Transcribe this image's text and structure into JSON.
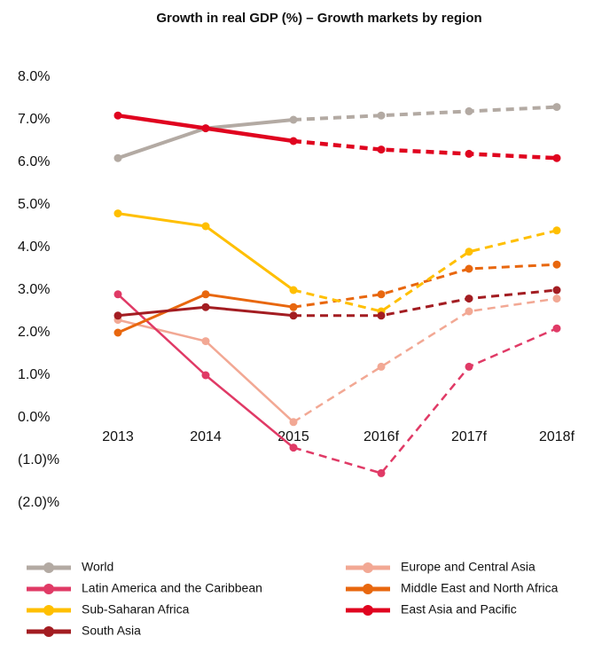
{
  "chart_data": {
    "type": "line",
    "title": "Growth in real GDP (%) – Growth markets by region",
    "categories": [
      "2013",
      "2014",
      "2015",
      "2016f",
      "2017f",
      "2018f"
    ],
    "dash_from_index": 2,
    "ylim": [
      -2,
      8
    ],
    "yticks": [
      {
        "value": 8,
        "label": "8.0%"
      },
      {
        "value": 7,
        "label": "7.0%"
      },
      {
        "value": 6,
        "label": "6.0%"
      },
      {
        "value": 5,
        "label": "5.0%"
      },
      {
        "value": 4,
        "label": "4.0%"
      },
      {
        "value": 3,
        "label": "3.0%"
      },
      {
        "value": 2,
        "label": "2.0%"
      },
      {
        "value": 1,
        "label": "1.0%"
      },
      {
        "value": 0,
        "label": "0.0%"
      },
      {
        "value": -1,
        "label": "(1.0)%"
      },
      {
        "value": -2,
        "label": "(2.0)%"
      }
    ],
    "grid": false,
    "series": [
      {
        "name": "World",
        "color": "#b3aaa3",
        "width": 4,
        "values": [
          6.1,
          6.8,
          7.0,
          7.1,
          7.2,
          7.3
        ]
      },
      {
        "name": "Europe and Central Asia",
        "color": "#f2a894",
        "width": 2.5,
        "values": [
          2.3,
          1.8,
          -0.1,
          1.2,
          2.5,
          2.8
        ]
      },
      {
        "name": "Latin America and the Caribbean",
        "color": "#e03a66",
        "width": 2.5,
        "values": [
          2.9,
          1.0,
          -0.7,
          -1.3,
          1.2,
          2.1
        ]
      },
      {
        "name": "Middle East and North Africa",
        "color": "#e8670e",
        "width": 3,
        "values": [
          2.0,
          2.9,
          2.6,
          2.9,
          3.5,
          3.6
        ]
      },
      {
        "name": "Sub-Saharan Africa",
        "color": "#ffbf00",
        "width": 3,
        "values": [
          4.8,
          4.5,
          3.0,
          2.5,
          3.9,
          4.4
        ]
      },
      {
        "name": "East Asia and Pacific",
        "color": "#e0041f",
        "width": 4.5,
        "values": [
          7.1,
          6.8,
          6.5,
          6.3,
          6.2,
          6.1
        ]
      },
      {
        "name": "South Asia",
        "color": "#a31d22",
        "width": 3,
        "values": [
          2.4,
          2.6,
          2.4,
          2.4,
          2.8,
          3.0
        ]
      }
    ]
  }
}
